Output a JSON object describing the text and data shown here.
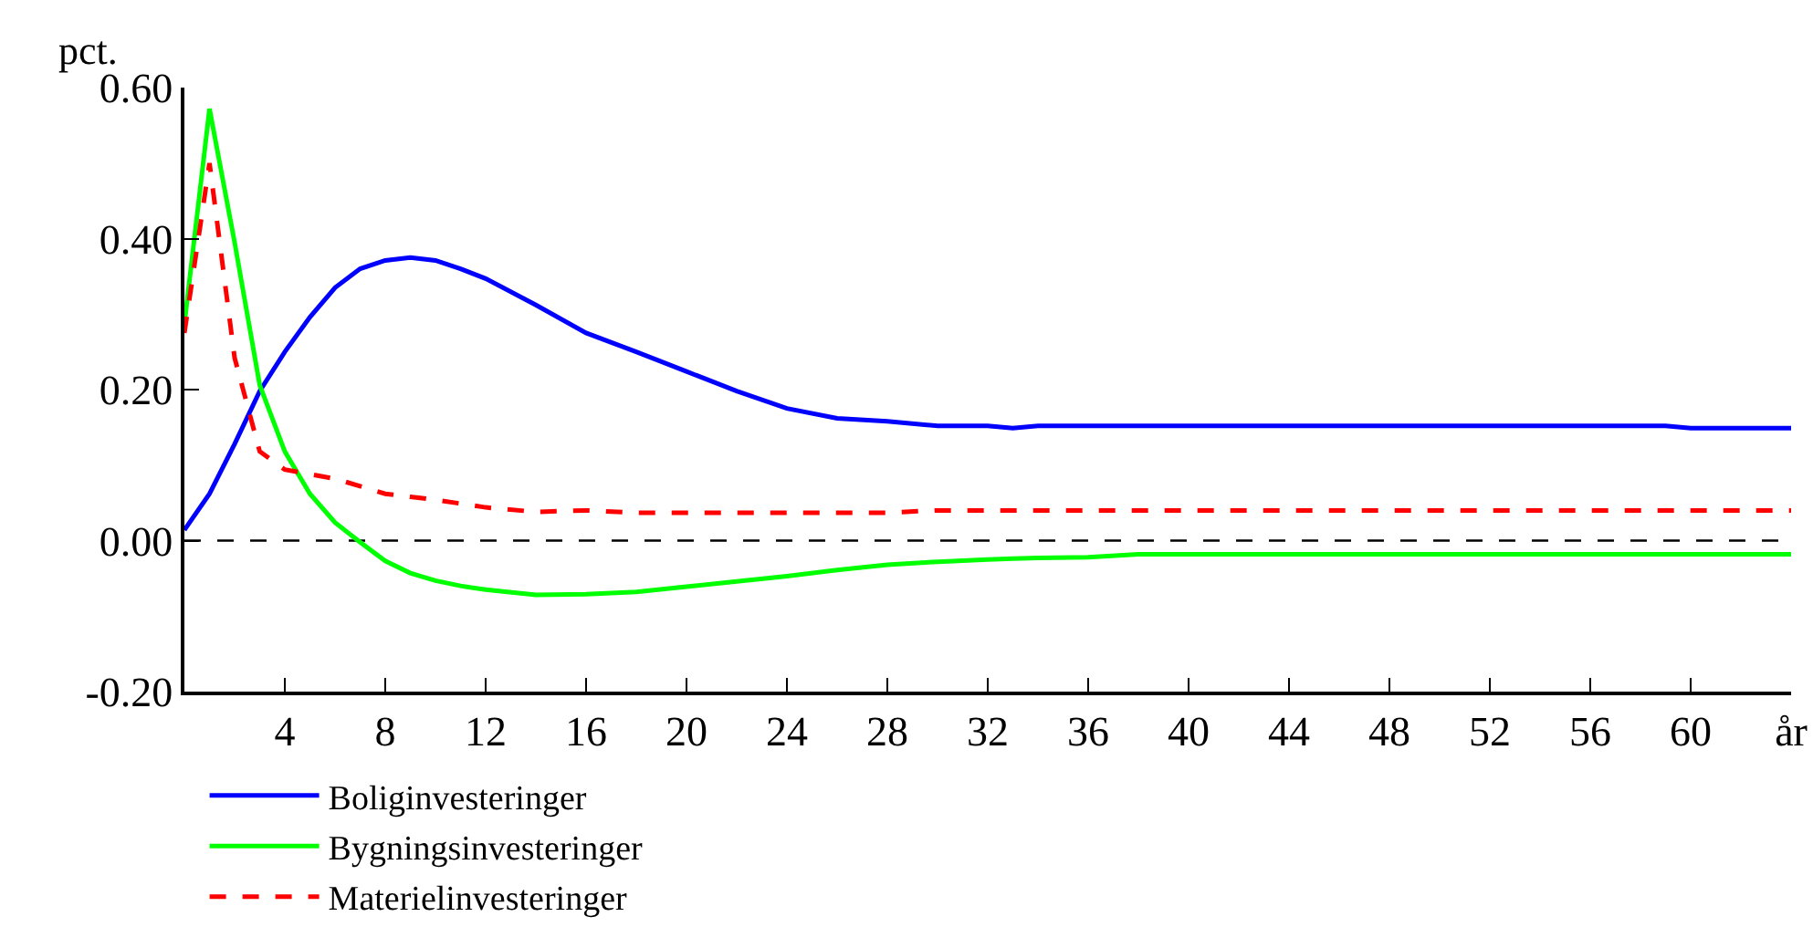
{
  "chart_data": {
    "type": "line",
    "ylabel": "pct.",
    "x": [
      0,
      1,
      2,
      3,
      4,
      5,
      6,
      7,
      8,
      9,
      10,
      11,
      12,
      14,
      16,
      18,
      20,
      22,
      24,
      26,
      28,
      30,
      32,
      33,
      34,
      36,
      38,
      40,
      44,
      48,
      52,
      56,
      59,
      60,
      64
    ],
    "series": [
      {
        "name": "Boliginvesteringer",
        "color": "#0000ff",
        "line_style": "solid",
        "values": [
          0.014,
          0.062,
          0.128,
          0.198,
          0.25,
          0.296,
          0.335,
          0.36,
          0.371,
          0.375,
          0.371,
          0.36,
          0.347,
          0.312,
          0.275,
          0.25,
          0.224,
          0.198,
          0.175,
          0.162,
          0.158,
          0.152,
          0.152,
          0.149,
          0.152,
          0.152,
          0.152,
          0.152,
          0.152,
          0.152,
          0.152,
          0.152,
          0.152,
          0.149,
          0.149
        ]
      },
      {
        "name": "Bygningsinvesteringer",
        "color": "#00ff00",
        "line_style": "solid",
        "values": [
          0.287,
          0.572,
          0.395,
          0.206,
          0.118,
          0.062,
          0.024,
          -0.002,
          -0.027,
          -0.043,
          -0.053,
          -0.06,
          -0.065,
          -0.072,
          -0.071,
          -0.068,
          -0.061,
          -0.054,
          -0.047,
          -0.039,
          -0.032,
          -0.028,
          -0.025,
          -0.024,
          -0.023,
          -0.022,
          -0.018,
          -0.018,
          -0.018,
          -0.018,
          -0.018,
          -0.018,
          -0.018,
          -0.018,
          -0.018
        ]
      },
      {
        "name": "Materielinvesteringer",
        "color": "#ff0000",
        "line_style": "dashed",
        "values": [
          0.275,
          0.5,
          0.242,
          0.118,
          0.094,
          0.088,
          0.082,
          0.072,
          0.062,
          0.058,
          0.054,
          0.049,
          0.044,
          0.038,
          0.04,
          0.037,
          0.037,
          0.037,
          0.037,
          0.037,
          0.037,
          0.04,
          0.04,
          0.04,
          0.04,
          0.04,
          0.04,
          0.04,
          0.04,
          0.04,
          0.04,
          0.04,
          0.04,
          0.04,
          0.04
        ]
      }
    ],
    "xlim": [
      0,
      64
    ],
    "xticks": [
      4,
      8,
      12,
      16,
      20,
      24,
      28,
      32,
      36,
      40,
      44,
      48,
      52,
      56,
      60,
      {
        "value": 64,
        "label": "år"
      }
    ],
    "ylim": [
      -0.2,
      0.6
    ],
    "yticks": [
      {
        "value": -0.2,
        "label": "-0.20"
      },
      {
        "value": 0.0,
        "label": "0.00"
      },
      {
        "value": 0.2,
        "label": "0.20"
      },
      {
        "value": 0.4,
        "label": "0.40"
      },
      {
        "value": 0.6,
        "label": "0.60"
      }
    ],
    "ref_lines": [
      {
        "axis": "y",
        "value": 0,
        "color": "#000000",
        "line_style": "dashed"
      }
    ],
    "grid": false,
    "legend": "bottom left",
    "marker": "none"
  }
}
